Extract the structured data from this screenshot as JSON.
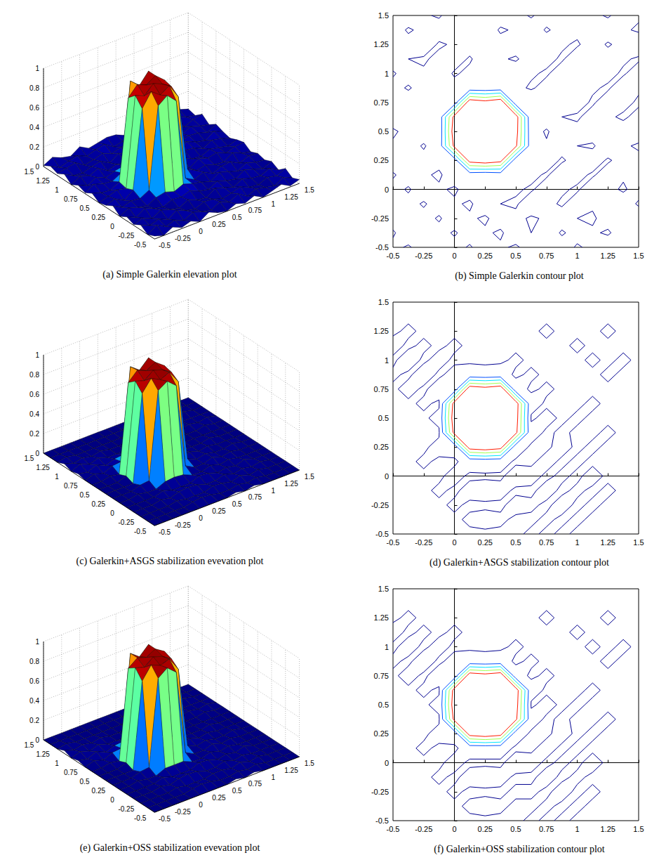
{
  "chart_data": [
    {
      "type": "surface",
      "captions": {
        "elevation": "(a) Simple Galerkin elevation plot",
        "contour": "(b) Simple Galerkin contour plot"
      },
      "x": [
        -0.5,
        -0.375,
        -0.25,
        -0.125,
        0,
        0.125,
        0.25,
        0.375,
        0.5,
        0.625,
        0.75,
        0.875,
        1,
        1.125,
        1.25,
        1.375,
        1.5
      ],
      "y": [
        -0.5,
        -0.375,
        -0.25,
        -0.125,
        0,
        0.125,
        0.25,
        0.375,
        0.5,
        0.625,
        0.75,
        0.875,
        1,
        1.125,
        1.25,
        1.375,
        1.5
      ],
      "z": [
        [
          0.03,
          0,
          0.05,
          0.01,
          0.04,
          0,
          0.06,
          0.02,
          0,
          0.04,
          0.01,
          0.05,
          0,
          0.03,
          0.06,
          0.01,
          0.04
        ],
        [
          0,
          0.06,
          0.01,
          0.04,
          0,
          0.05,
          0.02,
          0,
          0.05,
          0.01,
          0.06,
          0,
          0.04,
          0.02,
          0,
          0.05,
          0.01
        ],
        [
          0.05,
          0.01,
          0.04,
          0,
          0.06,
          0.02,
          0,
          0.04,
          0.03,
          0,
          0.02,
          0.05,
          0.01,
          0,
          0.04,
          0.02,
          0.06
        ],
        [
          0.01,
          0.04,
          0,
          0.05,
          0.02,
          0,
          0.05,
          0.01,
          0,
          0.06,
          0.03,
          0,
          0.05,
          0.02,
          0.01,
          0.05,
          0
        ],
        [
          0.04,
          0,
          0.06,
          0.02,
          0,
          0.04,
          0.03,
          0.06,
          0.02,
          0,
          0.05,
          0.02,
          0,
          0.06,
          0.03,
          0,
          0.04
        ],
        [
          0,
          0.05,
          0.02,
          0,
          0.05,
          0.07,
          0.04,
          0.08,
          0.05,
          0.03,
          0,
          0.06,
          0.03,
          0,
          0.05,
          0.02,
          0.01
        ],
        [
          0.06,
          0.01,
          0.04,
          0.03,
          0.08,
          0.9,
          0.97,
          0.88,
          0.06,
          0.01,
          0.05,
          0,
          0.04,
          0.05,
          0,
          0.04,
          0.03
        ],
        [
          0.02,
          0.05,
          0,
          0.07,
          0.86,
          1,
          0.93,
          0.99,
          0.84,
          0.07,
          0.02,
          0.04,
          0.01,
          0,
          0.06,
          0.02,
          0
        ],
        [
          0,
          0.03,
          0.06,
          0.04,
          0.95,
          0.91,
          1,
          0.96,
          0.9,
          0.05,
          0,
          0.06,
          0.03,
          0.05,
          0.01,
          0.04,
          0.05
        ],
        [
          0.05,
          0.02,
          0.01,
          0.06,
          0.88,
          0.98,
          0.94,
          1,
          0.92,
          0.03,
          0.06,
          0.01,
          0,
          0.04,
          0.02,
          0,
          0.03
        ],
        [
          0.01,
          0.06,
          0.03,
          0.02,
          0.07,
          0.97,
          0.89,
          1,
          0.05,
          0.08,
          0.02,
          0.05,
          0.04,
          0,
          0.05,
          0.03,
          0
        ],
        [
          0.04,
          0,
          0.05,
          0.01,
          0.04,
          0.06,
          0.05,
          0.07,
          0.03,
          0,
          0.04,
          0.01,
          0.06,
          0.02,
          0,
          0.06,
          0.02
        ],
        [
          0,
          0.05,
          0.02,
          0.06,
          0,
          0.03,
          0.01,
          0.04,
          0.06,
          0.02,
          0,
          0.05,
          0.01,
          0.04,
          0.03,
          0,
          0.05
        ],
        [
          0.06,
          0.01,
          0,
          0.03,
          0.05,
          0,
          0.06,
          0.02,
          0,
          0.05,
          0.03,
          0,
          0.06,
          0.01,
          0.05,
          0.02,
          0
        ],
        [
          0.02,
          0.04,
          0.06,
          0,
          0.02,
          0.05,
          0.01,
          0.04,
          0.05,
          0.01,
          0.06,
          0.02,
          0,
          0.05,
          0,
          0.04,
          0.06
        ],
        [
          0.05,
          0,
          0.03,
          0.05,
          0.01,
          0.04,
          0.06,
          0,
          0.02,
          0.06,
          0,
          0.04,
          0.03,
          0.01,
          0.06,
          0.02,
          0
        ],
        [
          0.01,
          0.06,
          0.02,
          0,
          0.06,
          0.01,
          0.03,
          0.05,
          0.04,
          0,
          0.05,
          0.01,
          0.06,
          0.03,
          0,
          0.05,
          0.02
        ]
      ],
      "xlim": [
        -0.5,
        1.5
      ],
      "ylim": [
        -0.5,
        1.5
      ],
      "zlim": [
        0,
        1
      ],
      "xticks": [
        -0.5,
        -0.25,
        0,
        0.25,
        0.5,
        0.75,
        1,
        1.25,
        1.5
      ],
      "yticks": [
        -0.5,
        -0.25,
        0,
        0.25,
        0.5,
        0.75,
        1,
        1.25,
        1.5
      ],
      "zticks": [
        0,
        0.2,
        0.4,
        0.6,
        0.8,
        1
      ],
      "levels": [
        0.01,
        0.2,
        0.4,
        0.6,
        0.8
      ],
      "colors": [
        "#00008f",
        "#0050ff",
        "#00e5ff",
        "#a0ff50",
        "#ff1a00"
      ],
      "grid": true
    },
    {
      "type": "surface",
      "captions": {
        "elevation": "(c) Galerkin+ASGS stabilization evevation plot",
        "contour": "(d) Galerkin+ASGS stabilization contour plot"
      },
      "x": [
        -0.5,
        -0.375,
        -0.25,
        -0.125,
        0,
        0.125,
        0.25,
        0.375,
        0.5,
        0.625,
        0.75,
        0.875,
        1,
        1.125,
        1.25,
        1.375,
        1.5
      ],
      "y": [
        -0.5,
        -0.375,
        -0.25,
        -0.125,
        0,
        0.125,
        0.25,
        0.375,
        0.5,
        0.625,
        0.75,
        0.875,
        1,
        1.125,
        1.25,
        1.375,
        1.5
      ],
      "z": [
        [
          0,
          0,
          0,
          0,
          0,
          0,
          0,
          0,
          0,
          0.02,
          0,
          0.02,
          0,
          0,
          0,
          0,
          0
        ],
        [
          0,
          0,
          0,
          0,
          0,
          0.02,
          0.03,
          0.02,
          0,
          0,
          0.02,
          0,
          0.02,
          0,
          0,
          0,
          0
        ],
        [
          0,
          0,
          0,
          0,
          0.02,
          0,
          0,
          0,
          0.03,
          0.02,
          0,
          0.03,
          0,
          0.02,
          0,
          0,
          0
        ],
        [
          0,
          0,
          0,
          0.02,
          0,
          0.03,
          0.04,
          0.03,
          0,
          0,
          0.03,
          0,
          0.02,
          0,
          0.02,
          0,
          0
        ],
        [
          0,
          0,
          0,
          0,
          0.03,
          0,
          0,
          0,
          0.04,
          0.03,
          0,
          0.02,
          0,
          0.03,
          0,
          0,
          0
        ],
        [
          0,
          0,
          0.02,
          0,
          0,
          0.04,
          0.05,
          0.04,
          0,
          0,
          0.03,
          0,
          0.02,
          0,
          0,
          0,
          0
        ],
        [
          0,
          0,
          0,
          0.03,
          0.04,
          0.92,
          0.98,
          0.9,
          0.05,
          0,
          0,
          0.03,
          0,
          0.02,
          0,
          0,
          0
        ],
        [
          0,
          0,
          0,
          0,
          0.88,
          1,
          0.95,
          0.99,
          0.86,
          0.04,
          0,
          0.02,
          0,
          0,
          0.02,
          0,
          0
        ],
        [
          0,
          0,
          0,
          0.03,
          0.96,
          0.93,
          1,
          0.97,
          0.91,
          0,
          0.03,
          0,
          0.02,
          0,
          0,
          0,
          0
        ],
        [
          0,
          0,
          0.02,
          0,
          0.9,
          0.99,
          0.95,
          1,
          0.93,
          0.04,
          0,
          0,
          0,
          0.02,
          0,
          0,
          0
        ],
        [
          0,
          0.03,
          0,
          0.04,
          0.05,
          0.98,
          0.91,
          1,
          0.04,
          0,
          0.02,
          0,
          0,
          0,
          0,
          0,
          0
        ],
        [
          0.02,
          0,
          0.04,
          0,
          0.03,
          0.04,
          0.03,
          0.04,
          0,
          0.02,
          0,
          0,
          0,
          0,
          0.02,
          0,
          0
        ],
        [
          0,
          0.04,
          0,
          0.03,
          0,
          0,
          0,
          0,
          0.02,
          0,
          0,
          0,
          0,
          0.02,
          0,
          0.02,
          0
        ],
        [
          0.03,
          0,
          0.02,
          0,
          0.02,
          0,
          0,
          0,
          0,
          0,
          0,
          0,
          0.02,
          0,
          0,
          0,
          0
        ],
        [
          0,
          0.02,
          0,
          0,
          0,
          0,
          0,
          0,
          0,
          0,
          0.02,
          0,
          0,
          0,
          0.02,
          0,
          0
        ],
        [
          0,
          0,
          0,
          0,
          0,
          0,
          0,
          0,
          0,
          0,
          0,
          0,
          0,
          0,
          0,
          0,
          0
        ],
        [
          0,
          0,
          0,
          0,
          0,
          0,
          0,
          0,
          0,
          0,
          0,
          0,
          0,
          0,
          0,
          0,
          0
        ]
      ],
      "xlim": [
        -0.5,
        1.5
      ],
      "ylim": [
        -0.5,
        1.5
      ],
      "zlim": [
        0,
        1
      ],
      "xticks": [
        -0.5,
        -0.25,
        0,
        0.25,
        0.5,
        0.75,
        1,
        1.25,
        1.5
      ],
      "yticks": [
        -0.5,
        -0.25,
        0,
        0.25,
        0.5,
        0.75,
        1,
        1.25,
        1.5
      ],
      "zticks": [
        0,
        0.2,
        0.4,
        0.6,
        0.8,
        1
      ],
      "levels": [
        0.01,
        0.2,
        0.4,
        0.6,
        0.8
      ],
      "colors": [
        "#00008f",
        "#0050ff",
        "#00e5ff",
        "#a0ff50",
        "#ff1a00"
      ],
      "grid": true
    },
    {
      "type": "surface",
      "captions": {
        "elevation": "(e) Galerkin+OSS stabilization evevation plot",
        "contour": "(f) Galerkin+OSS stabilization contour plot"
      },
      "x": [
        -0.5,
        -0.375,
        -0.25,
        -0.125,
        0,
        0.125,
        0.25,
        0.375,
        0.5,
        0.625,
        0.75,
        0.875,
        1,
        1.125,
        1.25,
        1.375,
        1.5
      ],
      "y": [
        -0.5,
        -0.375,
        -0.25,
        -0.125,
        0,
        0.125,
        0.25,
        0.375,
        0.5,
        0.625,
        0.75,
        0.875,
        1,
        1.125,
        1.25,
        1.375,
        1.5
      ],
      "z": [
        [
          0,
          0,
          0,
          0,
          0,
          0,
          0,
          0,
          0,
          0.02,
          0,
          0.02,
          0,
          0,
          0,
          0,
          0
        ],
        [
          0,
          0,
          0,
          0,
          0,
          0.02,
          0.03,
          0.02,
          0,
          0,
          0.02,
          0,
          0.02,
          0,
          0,
          0,
          0
        ],
        [
          0,
          0,
          0,
          0,
          0.02,
          0,
          0,
          0,
          0.02,
          0.02,
          0,
          0.03,
          0,
          0.02,
          0,
          0,
          0
        ],
        [
          0,
          0,
          0,
          0.02,
          0,
          0.03,
          0.04,
          0.03,
          0,
          0,
          0.03,
          0,
          0.02,
          0,
          0,
          0,
          0
        ],
        [
          0,
          0,
          0,
          0,
          0.03,
          0,
          0,
          0,
          0.04,
          0.03,
          0,
          0.02,
          0,
          0.03,
          0,
          0,
          0
        ],
        [
          0,
          0,
          0.02,
          0,
          0,
          0.04,
          0.04,
          0.04,
          0,
          0,
          0.03,
          0,
          0.02,
          0,
          0,
          0,
          0
        ],
        [
          0,
          0,
          0,
          0.03,
          0.04,
          0.91,
          0.98,
          0.9,
          0.05,
          0,
          0,
          0.03,
          0,
          0.02,
          0,
          0,
          0
        ],
        [
          0,
          0,
          0,
          0,
          0.87,
          1,
          0.96,
          0.99,
          0.85,
          0.04,
          0,
          0.02,
          0,
          0,
          0.02,
          0,
          0
        ],
        [
          0,
          0,
          0,
          0.03,
          0.96,
          0.93,
          1,
          0.97,
          0.91,
          0,
          0.03,
          0,
          0.02,
          0,
          0,
          0,
          0
        ],
        [
          0,
          0,
          0.02,
          0,
          0.91,
          0.98,
          0.95,
          1,
          0.94,
          0.04,
          0,
          0,
          0,
          0.02,
          0,
          0,
          0
        ],
        [
          0,
          0.03,
          0,
          0.04,
          0.05,
          0.98,
          0.91,
          1,
          0.04,
          0,
          0.02,
          0,
          0,
          0,
          0,
          0,
          0
        ],
        [
          0.02,
          0,
          0.04,
          0,
          0.03,
          0.04,
          0.03,
          0.04,
          0,
          0.02,
          0,
          0,
          0,
          0,
          0.02,
          0,
          0
        ],
        [
          0,
          0.03,
          0,
          0.03,
          0,
          0,
          0,
          0,
          0.02,
          0,
          0,
          0,
          0,
          0.02,
          0,
          0.02,
          0
        ],
        [
          0.03,
          0,
          0.02,
          0,
          0.02,
          0,
          0,
          0,
          0,
          0,
          0,
          0,
          0.02,
          0,
          0,
          0,
          0
        ],
        [
          0,
          0.02,
          0,
          0,
          0,
          0,
          0,
          0,
          0,
          0,
          0.02,
          0,
          0,
          0,
          0.02,
          0,
          0
        ],
        [
          0,
          0,
          0,
          0,
          0,
          0,
          0,
          0,
          0,
          0,
          0,
          0,
          0,
          0,
          0,
          0,
          0
        ],
        [
          0,
          0,
          0,
          0,
          0,
          0,
          0,
          0,
          0,
          0,
          0,
          0,
          0,
          0,
          0,
          0,
          0
        ]
      ],
      "xlim": [
        -0.5,
        1.5
      ],
      "ylim": [
        -0.5,
        1.5
      ],
      "zlim": [
        0,
        1
      ],
      "xticks": [
        -0.5,
        -0.25,
        0,
        0.25,
        0.5,
        0.75,
        1,
        1.25,
        1.5
      ],
      "yticks": [
        -0.5,
        -0.25,
        0,
        0.25,
        0.5,
        0.75,
        1,
        1.25,
        1.5
      ],
      "zticks": [
        0,
        0.2,
        0.4,
        0.6,
        0.8,
        1
      ],
      "levels": [
        0.01,
        0.2,
        0.4,
        0.6,
        0.8
      ],
      "colors": [
        "#00008f",
        "#0050ff",
        "#00e5ff",
        "#a0ff50",
        "#ff1a00"
      ],
      "grid": true
    }
  ]
}
